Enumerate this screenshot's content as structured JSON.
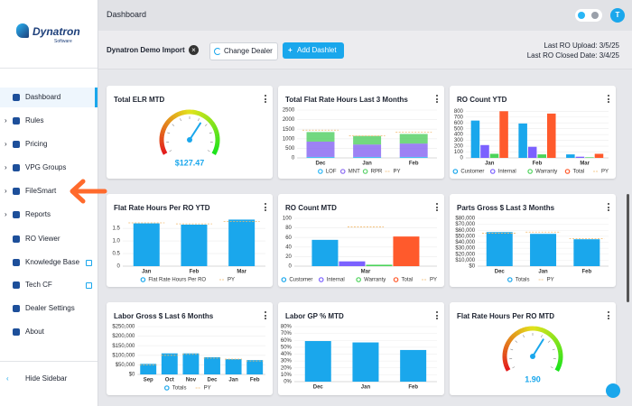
{
  "sidebar": {
    "logo": "Dynatron",
    "logo_sub": "Software",
    "items": [
      "Dashboard",
      "Rules",
      "Pricing",
      "VPG Groups",
      "FileSmart",
      "Reports",
      "RO Viewer",
      "Knowledge Base",
      "Tech CF",
      "Dealer Settings",
      "About"
    ],
    "hide": "Hide Sidebar"
  },
  "topbar": {
    "title": "Dashboard",
    "avatar": "T"
  },
  "toolbar": {
    "dealer": "Dynatron Demo Import",
    "change": "Change Dealer",
    "add": "Add Dashlet",
    "last_upload": "Last RO Upload: 3/5/25",
    "last_closed": "Last RO Closed Date: 3/4/25"
  },
  "dashlets": [
    {
      "title": "Total ELR MTD",
      "chart": {
        "type": "gauge",
        "values": [
          127.47
        ],
        "value_labels": [
          "$127.47"
        ],
        "ylim": [
          0,
          200
        ]
      }
    },
    {
      "title": "Total Flat Rate Hours Last 3 Months",
      "chart": {
        "type": "bar",
        "stacked": true,
        "grid": true,
        "legend": true,
        "categories": [
          "Dec",
          "Jan",
          "Feb"
        ],
        "series": [
          {
            "name": "LOF",
            "color": "#29b6f6",
            "values": [
              50,
              50,
              50
            ]
          },
          {
            "name": "MNT",
            "color": "#8c6cf2",
            "values": [
              800,
              650,
              700
            ]
          },
          {
            "name": "RPR",
            "color": "#5bd16a",
            "values": [
              500,
              450,
              500
            ]
          },
          {
            "name": "PY",
            "color": "#f2b868",
            "type": "line",
            "values": [
              1450,
              1150,
              1350
            ]
          }
        ],
        "ylim": [
          0,
          2500
        ],
        "yticks": [
          0,
          500,
          1000,
          1500,
          2000,
          2500
        ]
      }
    },
    {
      "title": "RO Count YTD",
      "chart": {
        "type": "bar",
        "grid": true,
        "legend": true,
        "categories": [
          "Jan",
          "Feb",
          "Mar"
        ],
        "series": [
          {
            "name": "Customer",
            "color": "#1aa7ec",
            "values": [
              640,
              590,
              60
            ]
          },
          {
            "name": "Internal",
            "color": "#7b61ff",
            "values": [
              220,
              190,
              20
            ]
          },
          {
            "name": "Warranty",
            "color": "#4cd35a",
            "values": [
              70,
              60,
              10
            ]
          },
          {
            "name": "Total",
            "color": "#ff5a2c",
            "values": [
              800,
              760,
              70
            ]
          },
          {
            "name": "PY",
            "color": "#f2b868",
            "type": "line",
            "values": [
              null,
              null,
              null
            ]
          }
        ],
        "ylim": [
          0,
          820
        ],
        "yticks": [
          0,
          100,
          200,
          300,
          400,
          500,
          600,
          700,
          800
        ]
      }
    },
    {
      "title": "Flat Rate Hours Per RO YTD",
      "chart": {
        "type": "bar",
        "grid": true,
        "legend": true,
        "categories": [
          "Jan",
          "Feb",
          "Mar"
        ],
        "series": [
          {
            "name": "Flat Rate Hours Per RO",
            "color": "#1aa7ec",
            "values": [
              1.7,
              1.65,
              1.85
            ]
          },
          {
            "name": "PY",
            "color": "#f2b868",
            "type": "line",
            "values": [
              1.72,
              1.68,
              1.78
            ]
          }
        ],
        "ylim": [
          0,
          1.9
        ],
        "yticks": [
          0,
          0.5,
          {
            "value": 1,
            "label": "1.0"
          },
          1.5
        ]
      }
    },
    {
      "title": "RO Count MTD",
      "chart": {
        "type": "bar",
        "grid": true,
        "legend": true,
        "categories": [
          "Mar"
        ],
        "series": [
          {
            "name": "Customer",
            "color": "#1aa7ec",
            "values": [
              55
            ]
          },
          {
            "name": "Internal",
            "color": "#7b61ff",
            "values": [
              10
            ]
          },
          {
            "name": "Warranty",
            "color": "#4cd35a",
            "values": [
              3
            ]
          },
          {
            "name": "Total",
            "color": "#ff5a2c",
            "values": [
              62
            ]
          },
          {
            "name": "PY",
            "color": "#f2b868",
            "type": "line",
            "values": [
              82
            ]
          }
        ],
        "ylim": [
          0,
          100
        ],
        "yticks": [
          0,
          20,
          40,
          60,
          80,
          100
        ]
      }
    },
    {
      "title": "Parts Gross $ Last 3 Months",
      "chart": {
        "type": "bar",
        "grid": true,
        "legend": true,
        "categories": [
          "Dec",
          "Jan",
          "Feb"
        ],
        "series": [
          {
            "name": "Totals",
            "color": "#1aa7ec",
            "values": [
              57000,
              54000,
              45000
            ]
          },
          {
            "name": "PY",
            "color": "#f2b868",
            "type": "line",
            "values": [
              55000,
              57000,
              46000
            ]
          }
        ],
        "ylim": [
          0,
          80000
        ],
        "yticks": [
          {
            "value": 0,
            "label": "$0"
          },
          {
            "value": 10000,
            "label": "$10,000"
          },
          {
            "value": 20000,
            "label": "$20,000"
          },
          {
            "value": 30000,
            "label": "$30,000"
          },
          {
            "value": 40000,
            "label": "$40,000"
          },
          {
            "value": 50000,
            "label": "$50,000"
          },
          {
            "value": 60000,
            "label": "$60,000"
          },
          {
            "value": 70000,
            "label": "$70,000"
          },
          {
            "value": 80000,
            "label": "$80,000"
          }
        ]
      }
    },
    {
      "title": "Labor Gross $ Last 6 Months",
      "chart": {
        "type": "bar",
        "grid": true,
        "legend": true,
        "categories": [
          "Sep",
          "Oct",
          "Nov",
          "Dec",
          "Jan",
          "Feb"
        ],
        "series": [
          {
            "name": "Totals",
            "color": "#1aa7ec",
            "values": [
              55000,
              110000,
              110000,
              90000,
              80000,
              75000
            ]
          },
          {
            "name": "PY",
            "color": "#f2b868",
            "type": "line",
            "values": [
              50000,
              100000,
              105000,
              85000,
              80000,
              70000
            ]
          }
        ],
        "ylim": [
          0,
          250000
        ],
        "yticks": [
          {
            "value": 0,
            "label": "$0"
          },
          {
            "value": 50000,
            "label": "$50,000"
          },
          {
            "value": 100000,
            "label": "$100,000"
          },
          {
            "value": 150000,
            "label": "$150,000"
          },
          {
            "value": 200000,
            "label": "$200,000"
          },
          {
            "value": 250000,
            "label": "$250,000"
          }
        ]
      }
    },
    {
      "title": "Labor GP % MTD",
      "chart": {
        "type": "bar",
        "grid": true,
        "legend": false,
        "categories": [
          "Dec",
          "Jan",
          "Feb"
        ],
        "series": [
          {
            "name": "Totals",
            "color": "#1aa7ec",
            "values": [
              59,
              57,
              46
            ]
          }
        ],
        "ylim": [
          0,
          80
        ],
        "yticks": [
          {
            "value": 0,
            "label": "0%"
          },
          {
            "value": 10,
            "label": "10%"
          },
          {
            "value": 20,
            "label": "20%"
          },
          {
            "value": 30,
            "label": "30%"
          },
          {
            "value": 40,
            "label": "40%"
          },
          {
            "value": 50,
            "label": "50%"
          },
          {
            "value": 60,
            "label": "60%"
          },
          {
            "value": 70,
            "label": "70%"
          },
          {
            "value": 80,
            "label": "80%"
          }
        ]
      }
    },
    {
      "title": "Flat Rate Hours Per RO MTD",
      "chart": {
        "type": "gauge",
        "values": [
          1.9
        ],
        "value_labels": [
          "1.90"
        ],
        "ylim": [
          0,
          3
        ]
      }
    }
  ]
}
